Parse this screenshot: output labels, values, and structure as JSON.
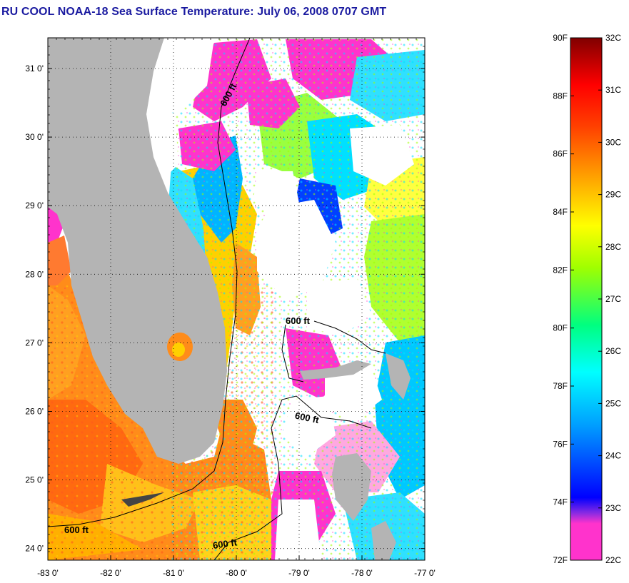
{
  "title": "RU COOL  NOAA-18  Sea Surface Temperature:  July 06, 2008 0707 GMT",
  "map": {
    "lat_ticks": [
      "31 0'",
      "30 0'",
      "29 0'",
      "28 0'",
      "27 0'",
      "26 0'",
      "25 0'",
      "24 0'"
    ],
    "lon_ticks": [
      "-83 0'",
      "-82 0'",
      "-81 0'",
      "-80 0'",
      "-79 0'",
      "-78 0'",
      "-77 0'"
    ],
    "contour_labels": [
      "600 ft",
      "600 ft",
      "600 ft",
      "600 ft",
      "600 ft"
    ],
    "colors": {
      "land": "#b4b4b4",
      "cloud": "#ffffff",
      "contour": "#000000"
    }
  },
  "colorbar": {
    "fahrenheit": [
      "90F",
      "88F",
      "86F",
      "84F",
      "82F",
      "80F",
      "78F",
      "76F",
      "74F",
      "72F"
    ],
    "celsius": [
      "32C",
      "31C",
      "30C",
      "29C",
      "28C",
      "27C",
      "26C",
      "25C",
      "24C",
      "23C",
      "22C"
    ],
    "gradient": [
      "#ff33cc",
      "#8a2be2",
      "#0000ff",
      "#00a0ff",
      "#00ffff",
      "#00ff80",
      "#a0ff00",
      "#ffff00",
      "#ffa500",
      "#ff4000",
      "#ff0000",
      "#800000"
    ]
  }
}
